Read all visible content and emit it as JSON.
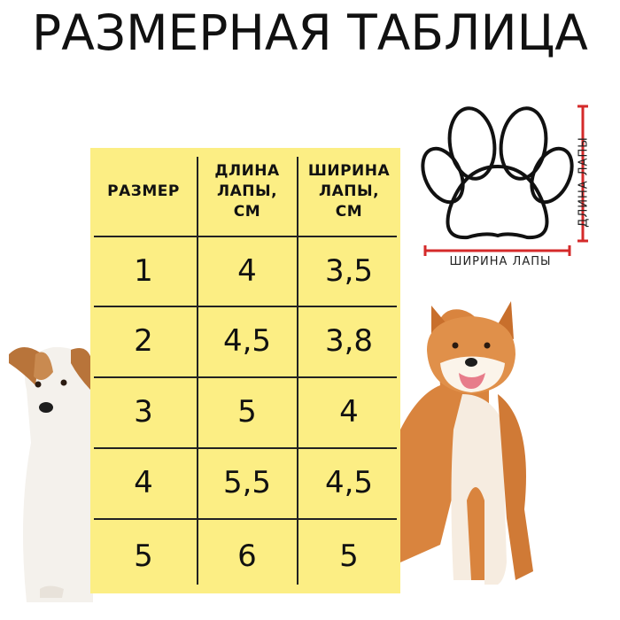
{
  "title": "РАЗМЕРНАЯ ТАБЛИЦА",
  "table": {
    "headers": [
      "РАЗМЕР",
      "ДЛИНА ЛАПЫ, СМ",
      "ШИРИНА ЛАПЫ, СМ"
    ],
    "header_lines": [
      [
        "РАЗМЕР"
      ],
      [
        "ДЛИНА",
        "ЛАПЫ,",
        "СМ"
      ],
      [
        "ШИРИНА",
        "ЛАПЫ,",
        "СМ"
      ]
    ],
    "rows": [
      [
        "1",
        "4",
        "3,5"
      ],
      [
        "2",
        "4,5",
        "3,8"
      ],
      [
        "3",
        "5",
        "4"
      ],
      [
        "4",
        "5,5",
        "4,5"
      ],
      [
        "5",
        "6",
        "5"
      ]
    ],
    "background_color": "#fcee84"
  },
  "paw_diagram": {
    "length_label": "ДЛИНА ЛАПЫ",
    "width_label": "ШИРИНА ЛАПЫ",
    "measure_color": "#d42a2a"
  },
  "images": {
    "left": "jack-russell-terrier",
    "right": "shiba-inu"
  }
}
